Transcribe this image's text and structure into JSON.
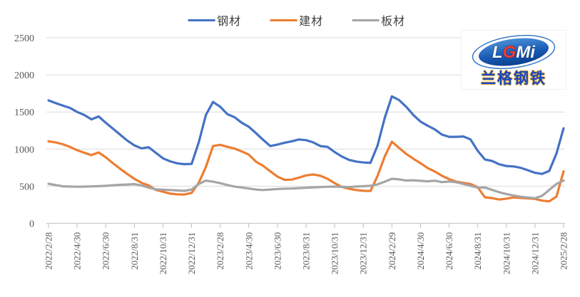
{
  "logo": {
    "l": "L",
    "g": "G",
    "mi": "Mi",
    "subtext": "兰格钢铁"
  },
  "legend": {
    "items": [
      {
        "label": "钢材",
        "color": "#4472C4"
      },
      {
        "label": "建材",
        "color": "#ED7D31"
      },
      {
        "label": "板材",
        "color": "#A5A5A5"
      }
    ]
  },
  "chart_data": {
    "type": "line",
    "title": "",
    "xlabel": "",
    "ylabel": "",
    "ylim": [
      0,
      2500
    ],
    "y_ticks": [
      0,
      500,
      1000,
      1500,
      2000,
      2500
    ],
    "grid": "horizontal",
    "legend_position": "top",
    "x_tick_labels": [
      "2022/2/28",
      "2022/4/30",
      "2022/6/30",
      "2022/8/31",
      "2022/10/31",
      "2022/12/31",
      "2023/2/28",
      "2023/4/30",
      "2023/6/30",
      "2023/8/31",
      "2023/10/31",
      "2023/12/31",
      "2024/2/29",
      "2024/4/30",
      "2024/6/30",
      "2024/8/31",
      "2024/10/31",
      "2024/12/31",
      "2025/2/28"
    ],
    "x": [
      "2022/2/28",
      "2022/3/15",
      "2022/3/31",
      "2022/4/15",
      "2022/4/30",
      "2022/5/15",
      "2022/5/31",
      "2022/6/15",
      "2022/6/30",
      "2022/7/15",
      "2022/7/31",
      "2022/8/15",
      "2022/8/31",
      "2022/9/15",
      "2022/9/30",
      "2022/10/15",
      "2022/10/31",
      "2022/11/15",
      "2022/11/30",
      "2022/12/15",
      "2022/12/31",
      "2023/1/15",
      "2023/1/31",
      "2023/2/15",
      "2023/2/28",
      "2023/3/15",
      "2023/3/31",
      "2023/4/15",
      "2023/4/30",
      "2023/5/15",
      "2023/5/31",
      "2023/6/15",
      "2023/6/30",
      "2023/7/15",
      "2023/7/31",
      "2023/8/15",
      "2023/8/31",
      "2023/9/15",
      "2023/9/30",
      "2023/10/15",
      "2023/10/31",
      "2023/11/15",
      "2023/11/30",
      "2023/12/15",
      "2023/12/31",
      "2024/1/15",
      "2024/1/31",
      "2024/2/15",
      "2024/2/29",
      "2024/3/15",
      "2024/3/31",
      "2024/4/15",
      "2024/4/30",
      "2024/5/15",
      "2024/5/31",
      "2024/6/15",
      "2024/6/30",
      "2024/7/15",
      "2024/7/31",
      "2024/8/15",
      "2024/8/31",
      "2024/9/15",
      "2024/9/30",
      "2024/10/15",
      "2024/10/31",
      "2024/11/15",
      "2024/11/30",
      "2024/12/15",
      "2024/12/31",
      "2025/1/15",
      "2025/1/31",
      "2025/2/15",
      "2025/2/28"
    ],
    "series": [
      {
        "name": "钢材",
        "color": "#4472C4",
        "values": [
          1655,
          1620,
          1585,
          1555,
          1500,
          1460,
          1400,
          1440,
          1355,
          1275,
          1195,
          1115,
          1050,
          1010,
          1025,
          950,
          875,
          835,
          808,
          797,
          800,
          1090,
          1460,
          1635,
          1570,
          1470,
          1430,
          1355,
          1300,
          1215,
          1125,
          1040,
          1060,
          1085,
          1105,
          1130,
          1120,
          1090,
          1040,
          1030,
          960,
          900,
          855,
          832,
          820,
          815,
          1050,
          1420,
          1710,
          1660,
          1570,
          1460,
          1370,
          1315,
          1265,
          1195,
          1165,
          1165,
          1170,
          1130,
          975,
          860,
          840,
          795,
          772,
          766,
          748,
          715,
          680,
          665,
          705,
          940,
          1280
        ]
      },
      {
        "name": "建材",
        "color": "#ED7D31",
        "values": [
          1105,
          1090,
          1065,
          1030,
          985,
          950,
          918,
          955,
          890,
          810,
          735,
          665,
          600,
          545,
          510,
          450,
          425,
          400,
          390,
          388,
          410,
          545,
          760,
          1040,
          1058,
          1030,
          1008,
          968,
          925,
          830,
          775,
          700,
          630,
          585,
          588,
          615,
          645,
          658,
          640,
          600,
          540,
          490,
          465,
          448,
          438,
          435,
          640,
          900,
          1100,
          1015,
          935,
          870,
          810,
          745,
          698,
          640,
          595,
          560,
          545,
          530,
          485,
          350,
          340,
          320,
          332,
          348,
          342,
          336,
          328,
          305,
          296,
          360,
          700
        ]
      },
      {
        "name": "板材",
        "color": "#A5A5A5",
        "values": [
          533,
          515,
          498,
          495,
          492,
          494,
          497,
          500,
          505,
          512,
          518,
          522,
          528,
          510,
          480,
          458,
          452,
          448,
          442,
          437,
          455,
          530,
          575,
          560,
          540,
          515,
          495,
          482,
          468,
          455,
          448,
          455,
          462,
          466,
          468,
          474,
          478,
          484,
          488,
          492,
          494,
          490,
          488,
          495,
          500,
          505,
          525,
          560,
          600,
          592,
          576,
          580,
          572,
          565,
          574,
          555,
          562,
          553,
          530,
          505,
          480,
          483,
          450,
          418,
          394,
          375,
          358,
          346,
          338,
          370,
          450,
          530,
          575
        ]
      }
    ]
  }
}
